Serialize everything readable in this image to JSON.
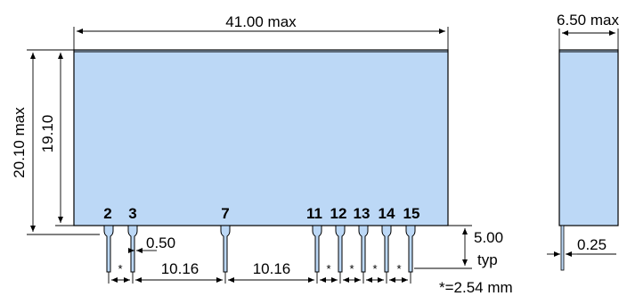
{
  "front_view": {
    "width_label": "41.00 max",
    "height_max_label": "20.10 max",
    "height_label": "19.10",
    "pin_width_label": "0.50",
    "pin_spacing_labels": [
      "10.16",
      "10.16"
    ],
    "pin_length_label_value": "5.00",
    "pin_length_label_unit": "typ",
    "star_label": "*",
    "pins": [
      "2",
      "3",
      "7",
      "11",
      "12",
      "13",
      "14",
      "15"
    ]
  },
  "side_view": {
    "depth_label": "6.50 max",
    "pin_thickness_label": "0.25"
  },
  "footnote": "*=2.54 mm",
  "colors": {
    "body_fill": "#bcd8f6",
    "outline": "#000000"
  }
}
